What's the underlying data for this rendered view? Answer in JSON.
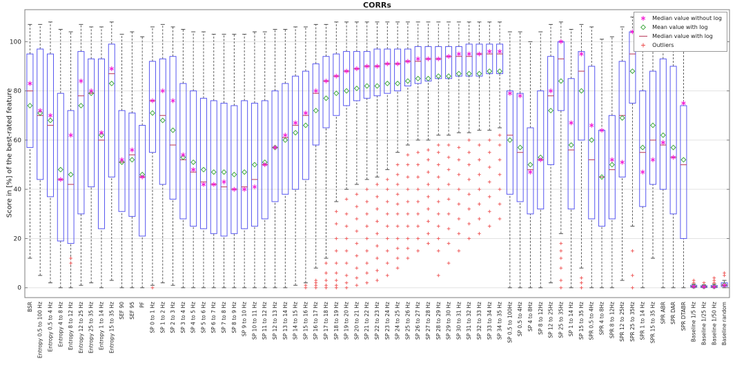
{
  "chart_data": {
    "type": "boxplot",
    "title": "CORRs",
    "ylabel": "Score in [%] of the best-rated feature",
    "xlabel": "",
    "ylim": [
      -4,
      113
    ],
    "yticks": [
      0,
      20,
      40,
      60,
      80,
      100
    ],
    "grid": "horizontal",
    "legend_position": "top-right",
    "legend": [
      {
        "label": "Median value without log",
        "marker": "magenta-asterisk"
      },
      {
        "label": "Mean value with log",
        "marker": "green-diamond"
      },
      {
        "label": "Median value with log",
        "marker": "median-line"
      },
      {
        "label": "Outliers",
        "marker": "red-plus"
      }
    ],
    "boxes": [
      {
        "label": "BSR",
        "lo": 12,
        "q1": 57,
        "med": 80,
        "q3": 95,
        "hi": 107,
        "mean": 74,
        "star": 83,
        "out": []
      },
      {
        "label": "Entropy 0.5 to 100 Hz",
        "lo": 5,
        "q1": 44,
        "med": 70,
        "q3": 97,
        "hi": 107,
        "mean": 71,
        "star": 72,
        "out": []
      },
      {
        "label": "Entropy 0.5 to 4 Hz",
        "lo": 2,
        "q1": 37,
        "med": 66,
        "q3": 95,
        "hi": 108,
        "mean": 68,
        "star": 70,
        "out": []
      },
      {
        "label": "Entropy 4 to 8 Hz",
        "lo": 0,
        "q1": 19,
        "med": 44,
        "q3": 79,
        "hi": 105,
        "mean": 48,
        "star": 44,
        "out": []
      },
      {
        "label": "Entropy 8 to 12 Hz",
        "lo": 0,
        "q1": 18,
        "med": 42,
        "q3": 72,
        "hi": 104,
        "mean": 46,
        "star": 62,
        "out": [
          10,
          12
        ]
      },
      {
        "label": "Entropy 12 to 25 Hz",
        "lo": 1,
        "q1": 30,
        "med": 78,
        "q3": 96,
        "hi": 107,
        "mean": 74,
        "star": 84,
        "out": []
      },
      {
        "label": "Entropy 25 to 35 Hz",
        "lo": 2,
        "q1": 41,
        "med": 79,
        "q3": 93,
        "hi": 106,
        "mean": 79,
        "star": 80,
        "out": []
      },
      {
        "label": "Entropy 1 to 14 Hz",
        "lo": 0,
        "q1": 24,
        "med": 60,
        "q3": 93,
        "hi": 106,
        "mean": 62,
        "star": 63,
        "out": []
      },
      {
        "label": "Entropy 15 to 35 Hz",
        "lo": 3,
        "q1": 45,
        "med": 87,
        "q3": 99,
        "hi": 108,
        "mean": 83,
        "star": 89,
        "out": []
      },
      {
        "label": "SEF 90",
        "lo": 0,
        "q1": 31,
        "med": 51,
        "q3": 72,
        "hi": 103,
        "mean": 51,
        "star": 52,
        "out": []
      },
      {
        "label": "SEF 95",
        "lo": 0,
        "q1": 29,
        "med": 54,
        "q3": 71,
        "hi": 104,
        "mean": 52,
        "star": 56,
        "out": []
      },
      {
        "label": "PF",
        "lo": 0,
        "q1": 21,
        "med": 45,
        "q3": 66,
        "hi": 102,
        "mean": 46,
        "star": 45,
        "out": []
      },
      {
        "label": "SP 0 to 1 Hz",
        "lo": 1,
        "q1": 55,
        "med": 76,
        "q3": 92,
        "hi": 106,
        "mean": 71,
        "star": 76,
        "out": [
          0
        ]
      },
      {
        "label": "SP 1 to 2 Hz",
        "lo": 2,
        "q1": 42,
        "med": 70,
        "q3": 93,
        "hi": 107,
        "mean": 68,
        "star": 80,
        "out": []
      },
      {
        "label": "SP 2 to 3 Hz",
        "lo": 1,
        "q1": 36,
        "med": 58,
        "q3": 94,
        "hi": 106,
        "mean": 64,
        "star": 76,
        "out": []
      },
      {
        "label": "SP 3 to 4 Hz",
        "lo": 0,
        "q1": 28,
        "med": 52,
        "q3": 83,
        "hi": 105,
        "mean": 53,
        "star": 54,
        "out": []
      },
      {
        "label": "SP 4 to 5 Hz",
        "lo": 0,
        "q1": 25,
        "med": 47,
        "q3": 80,
        "hi": 104,
        "mean": 51,
        "star": 48,
        "out": []
      },
      {
        "label": "SP 5 to 6 Hz",
        "lo": 0,
        "q1": 24,
        "med": 43,
        "q3": 77,
        "hi": 104,
        "mean": 48,
        "star": 42,
        "out": []
      },
      {
        "label": "SP 6 to 7 Hz",
        "lo": 0,
        "q1": 22,
        "med": 42,
        "q3": 76,
        "hi": 103,
        "mean": 47,
        "star": 42,
        "out": []
      },
      {
        "label": "SP 7 to 8 Hz",
        "lo": 0,
        "q1": 21,
        "med": 41,
        "q3": 75,
        "hi": 103,
        "mean": 47,
        "star": 43,
        "out": []
      },
      {
        "label": "SP 8 to 9 Hz",
        "lo": 0,
        "q1": 22,
        "med": 40,
        "q3": 74,
        "hi": 103,
        "mean": 46,
        "star": 40,
        "out": []
      },
      {
        "label": "SP 9 to 10 Hz",
        "lo": 0,
        "q1": 24,
        "med": 41,
        "q3": 76,
        "hi": 103,
        "mean": 47,
        "star": 40,
        "out": []
      },
      {
        "label": "SP 10 to 11 Hz",
        "lo": 0,
        "q1": 25,
        "med": 44,
        "q3": 75,
        "hi": 104,
        "mean": 50,
        "star": 41,
        "out": []
      },
      {
        "label": "SP 11 to 12 Hz",
        "lo": 0,
        "q1": 28,
        "med": 50,
        "q3": 76,
        "hi": 104,
        "mean": 51,
        "star": 50,
        "out": []
      },
      {
        "label": "SP 12 to 13 Hz",
        "lo": 0,
        "q1": 35,
        "med": 57,
        "q3": 80,
        "hi": 105,
        "mean": 57,
        "star": 57,
        "out": []
      },
      {
        "label": "SP 13 to 14 Hz",
        "lo": 0,
        "q1": 38,
        "med": 61,
        "q3": 83,
        "hi": 105,
        "mean": 60,
        "star": 62,
        "out": []
      },
      {
        "label": "SP 14 to 15 Hz",
        "lo": 1,
        "q1": 40,
        "med": 66,
        "q3": 86,
        "hi": 106,
        "mean": 63,
        "star": 67,
        "out": []
      },
      {
        "label": "SP 15 to 16 Hz",
        "lo": 2,
        "q1": 44,
        "med": 70,
        "q3": 88,
        "hi": 106,
        "mean": 66,
        "star": 71,
        "out": [
          0,
          1
        ]
      },
      {
        "label": "SP 16 to 17 Hz",
        "lo": 8,
        "q1": 58,
        "med": 79,
        "q3": 91,
        "hi": 107,
        "mean": 72,
        "star": 80,
        "out": [
          0,
          1,
          2,
          3
        ]
      },
      {
        "label": "SP 17 to 18 Hz",
        "lo": 12,
        "q1": 65,
        "med": 84,
        "q3": 94,
        "hi": 107,
        "mean": 77,
        "star": 84,
        "out": [
          0,
          1,
          3,
          6,
          10
        ]
      },
      {
        "label": "SP 18 to 19 Hz",
        "lo": 35,
        "q1": 70,
        "med": 86,
        "q3": 95,
        "hi": 108,
        "mean": 79,
        "star": 86,
        "out": [
          0,
          1,
          3,
          6,
          10,
          15,
          20,
          26,
          31
        ]
      },
      {
        "label": "SP 19 to 20 Hz",
        "lo": 40,
        "q1": 74,
        "med": 88,
        "q3": 96,
        "hi": 108,
        "mean": 80,
        "star": 88,
        "out": [
          0,
          2,
          5,
          10,
          15,
          20,
          25,
          30,
          36
        ]
      },
      {
        "label": "SP 20 to 21 Hz",
        "lo": 42,
        "q1": 76,
        "med": 89,
        "q3": 96,
        "hi": 108,
        "mean": 81,
        "star": 89,
        "out": [
          1,
          4,
          8,
          13,
          18,
          23,
          28,
          33,
          38
        ]
      },
      {
        "label": "SP 21 to 22 Hz",
        "lo": 44,
        "q1": 77,
        "med": 90,
        "q3": 96,
        "hi": 108,
        "mean": 82,
        "star": 90,
        "out": [
          2,
          6,
          10,
          15,
          20,
          25,
          30,
          35,
          40
        ]
      },
      {
        "label": "SP 22 to 23 Hz",
        "lo": 45,
        "q1": 78,
        "med": 90,
        "q3": 97,
        "hi": 108,
        "mean": 82,
        "star": 90,
        "out": [
          3,
          7,
          12,
          17,
          22,
          27,
          32,
          37,
          42
        ]
      },
      {
        "label": "SP 23 to 24 Hz",
        "lo": 48,
        "q1": 79,
        "med": 91,
        "q3": 97,
        "hi": 108,
        "mean": 83,
        "star": 91,
        "out": [
          5,
          10,
          15,
          20,
          25,
          30,
          35,
          40,
          44
        ]
      },
      {
        "label": "SP 24 to 25 Hz",
        "lo": 55,
        "q1": 80,
        "med": 91,
        "q3": 97,
        "hi": 108,
        "mean": 83,
        "star": 91,
        "out": [
          8,
          12,
          16,
          20,
          25,
          30,
          34,
          38,
          42,
          46,
          50
        ]
      },
      {
        "label": "SP 25 to 26 Hz",
        "lo": 58,
        "q1": 82,
        "med": 92,
        "q3": 97,
        "hi": 108,
        "mean": 84,
        "star": 92,
        "out": [
          12,
          16,
          20,
          25,
          30,
          35,
          40,
          45,
          50,
          54
        ]
      },
      {
        "label": "SP 26 to 27 Hz",
        "lo": 60,
        "q1": 83,
        "med": 92,
        "q3": 98,
        "hi": 108,
        "mean": 85,
        "star": 93,
        "out": [
          15,
          20,
          25,
          30,
          35,
          40,
          45,
          50,
          55
        ]
      },
      {
        "label": "SP 27 to 28 Hz",
        "lo": 60,
        "q1": 84,
        "med": 93,
        "q3": 98,
        "hi": 108,
        "mean": 85,
        "star": 93,
        "out": [
          18,
          22,
          27,
          32,
          37,
          42,
          47,
          52,
          56
        ]
      },
      {
        "label": "SP 28 to 29 Hz",
        "lo": 62,
        "q1": 85,
        "med": 93,
        "q3": 98,
        "hi": 108,
        "mean": 86,
        "star": 93,
        "out": [
          5,
          15,
          20,
          25,
          30,
          35,
          40,
          45,
          50,
          55,
          58
        ]
      },
      {
        "label": "SP 29 to 30 Hz",
        "lo": 62,
        "q1": 85,
        "med": 94,
        "q3": 98,
        "hi": 108,
        "mean": 86,
        "star": 94,
        "out": [
          10,
          18,
          24,
          30,
          36,
          42,
          48,
          53,
          58
        ]
      },
      {
        "label": "SP 30 to 31 Hz",
        "lo": 63,
        "q1": 86,
        "med": 94,
        "q3": 98,
        "hi": 108,
        "mean": 87,
        "star": 95,
        "out": [
          15,
          22,
          28,
          34,
          40,
          46,
          52,
          57
        ]
      },
      {
        "label": "SP 31 to 32 Hz",
        "lo": 63,
        "q1": 86,
        "med": 94,
        "q3": 99,
        "hi": 108,
        "mean": 87,
        "star": 95,
        "out": [
          20,
          26,
          32,
          38,
          44,
          50,
          55,
          60
        ]
      },
      {
        "label": "SP 32 to 33 Hz",
        "lo": 64,
        "q1": 86,
        "med": 95,
        "q3": 99,
        "hi": 108,
        "mean": 87,
        "star": 95,
        "out": [
          22,
          28,
          34,
          40,
          46,
          52,
          58
        ]
      },
      {
        "label": "SP 33 to 34 Hz",
        "lo": 64,
        "q1": 87,
        "med": 95,
        "q3": 99,
        "hi": 108,
        "mean": 88,
        "star": 96,
        "out": [
          25,
          31,
          37,
          43,
          49,
          55,
          60
        ]
      },
      {
        "label": "SP 34 to 35 Hz",
        "lo": 65,
        "q1": 87,
        "med": 95,
        "q3": 99,
        "hi": 108,
        "mean": 88,
        "star": 96,
        "out": [
          28,
          34,
          40,
          46,
          52,
          58,
          62
        ]
      },
      {
        "label": "SP 0.5 to 100Hz",
        "lo": 0,
        "q1": 38,
        "med": 62,
        "q3": 80,
        "hi": 104,
        "mean": 60,
        "star": 79,
        "out": []
      },
      {
        "label": "SP 0.5 to 4Hz",
        "lo": 0,
        "q1": 35,
        "med": 55,
        "q3": 79,
        "hi": 104,
        "mean": 57,
        "star": 78,
        "out": []
      },
      {
        "label": "SP 4 to 8Hz",
        "lo": 0,
        "q1": 30,
        "med": 48,
        "q3": 65,
        "hi": 100,
        "mean": 50,
        "star": 47,
        "out": []
      },
      {
        "label": "SP 8 to 12Hz",
        "lo": 0,
        "q1": 32,
        "med": 52,
        "q3": 80,
        "hi": 104,
        "mean": 53,
        "star": 52,
        "out": []
      },
      {
        "label": "SP 12 to 25Hz",
        "lo": 2,
        "q1": 50,
        "med": 78,
        "q3": 94,
        "hi": 107,
        "mean": 72,
        "star": 80,
        "out": []
      },
      {
        "label": "SP 25 to 35Hz",
        "lo": 22,
        "q1": 72,
        "med": 93,
        "q3": 100,
        "hi": 108,
        "mean": 84,
        "star": 100,
        "out": [
          0,
          3,
          8,
          12,
          15,
          18
        ]
      },
      {
        "label": "SP 1 to 14 Hz",
        "lo": 0,
        "q1": 32,
        "med": 56,
        "q3": 85,
        "hi": 105,
        "mean": 58,
        "star": 67,
        "out": []
      },
      {
        "label": "SP 15 to 35 Hz",
        "lo": 8,
        "q1": 60,
        "med": 88,
        "q3": 96,
        "hi": 107,
        "mean": 80,
        "star": 95,
        "out": [
          0,
          2,
          4
        ]
      },
      {
        "label": "SPR 0.5 to 4Hz",
        "lo": 0,
        "q1": 28,
        "med": 52,
        "q3": 90,
        "hi": 106,
        "mean": 60,
        "star": 66,
        "out": []
      },
      {
        "label": "SPR 4 to 8Hz",
        "lo": 0,
        "q1": 25,
        "med": 45,
        "q3": 64,
        "hi": 101,
        "mean": 45,
        "star": 64,
        "out": []
      },
      {
        "label": "SPR 8 to 12Hz",
        "lo": 0,
        "q1": 28,
        "med": 48,
        "q3": 70,
        "hi": 102,
        "mean": 50,
        "star": 52,
        "out": []
      },
      {
        "label": "SPR 12 to 25Hz",
        "lo": 3,
        "q1": 45,
        "med": 70,
        "q3": 92,
        "hi": 106,
        "mean": 69,
        "star": 51,
        "out": []
      },
      {
        "label": "SPR 25 to 35Hz",
        "lo": 25,
        "q1": 75,
        "med": 95,
        "q3": 104,
        "hi": 110,
        "mean": 88,
        "star": 104,
        "out": [
          0,
          5,
          15
        ]
      },
      {
        "label": "SPR 1 to 14 Hz",
        "lo": 0,
        "q1": 33,
        "med": 55,
        "q3": 80,
        "hi": 104,
        "mean": 57,
        "star": 47,
        "out": []
      },
      {
        "label": "SPR 15 to 35 Hz",
        "lo": 12,
        "q1": 42,
        "med": 60,
        "q3": 88,
        "hi": 105,
        "mean": 66,
        "star": 52,
        "out": []
      },
      {
        "label": "SPR ABR",
        "lo": 0,
        "q1": 40,
        "med": 58,
        "q3": 93,
        "hi": 106,
        "mean": 62,
        "star": 59,
        "out": []
      },
      {
        "label": "SPR DAR",
        "lo": 0,
        "q1": 30,
        "med": 53,
        "q3": 90,
        "hi": 105,
        "mean": 57,
        "star": 53,
        "out": []
      },
      {
        "label": "SPR DTABR",
        "lo": 0,
        "q1": 20,
        "med": 50,
        "q3": 74,
        "hi": 103,
        "mean": 52,
        "star": 75,
        "out": []
      },
      {
        "label": "Baseline 1/5 Hz",
        "lo": 0,
        "q1": 0.2,
        "med": 0.5,
        "q3": 1,
        "hi": 1.5,
        "mean": 0.6,
        "star": 0.5,
        "out": [
          2,
          3
        ]
      },
      {
        "label": "Baseline 1/25 Hz",
        "lo": 0,
        "q1": 0.1,
        "med": 0.4,
        "q3": 0.8,
        "hi": 1.2,
        "mean": 0.5,
        "star": 0.4,
        "out": [
          2
        ]
      },
      {
        "label": "Baseline 1/50 Hz",
        "lo": 0,
        "q1": 0.1,
        "med": 0.4,
        "q3": 0.9,
        "hi": 1.5,
        "mean": 0.5,
        "star": 0.4,
        "out": [
          2,
          3,
          4
        ]
      },
      {
        "label": "Baseline random",
        "lo": 0,
        "q1": 0.5,
        "med": 1,
        "q3": 2,
        "hi": 3,
        "mean": 1.2,
        "star": 1,
        "out": [
          5,
          6
        ]
      }
    ]
  },
  "colors": {
    "box": "#5656f0",
    "whisker": "#4d4d4d",
    "median": "#c0506e",
    "star": "#f318d3",
    "mean": "#3fa73f",
    "outlier": "#ee5050",
    "grid": "#e2e2e2",
    "axis": "#7d7d7d",
    "text": "#262626"
  }
}
